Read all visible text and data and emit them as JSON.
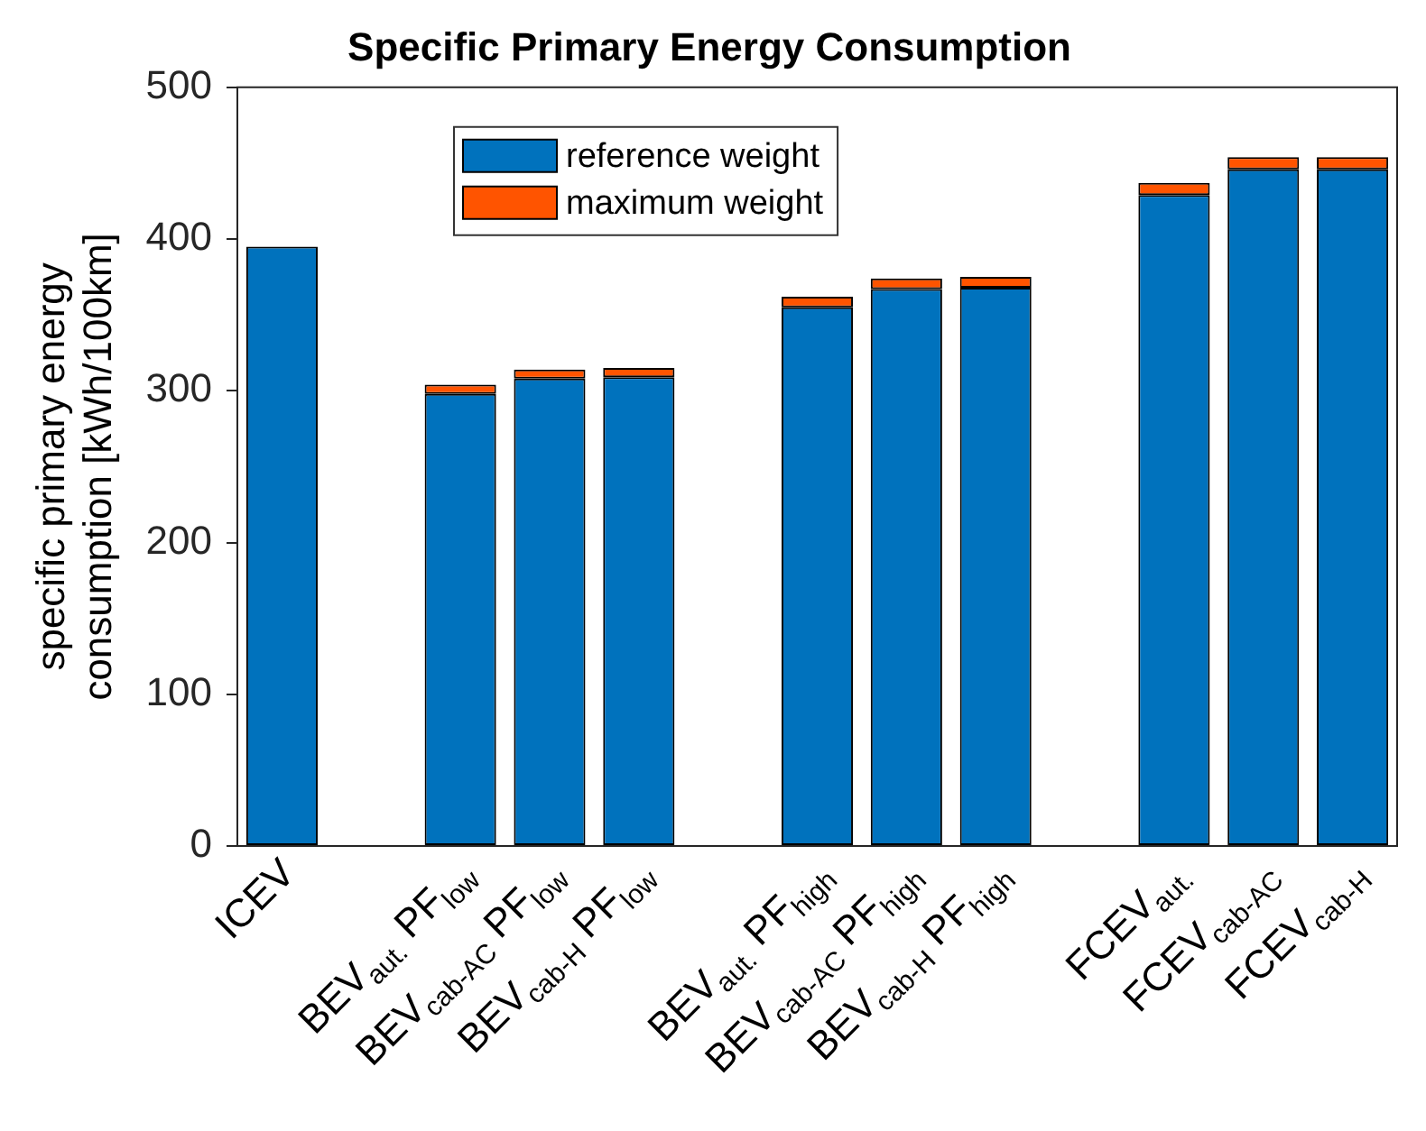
{
  "chart_data": {
    "type": "bar",
    "title": "Specific Primary Energy Consumption",
    "ylabel": "specific primary energy\nconsumption [kWh/100km]",
    "categories": [
      "ICEV",
      null,
      "BEV$_{aut.}$ PF$_{low}$",
      "BEV$_{cab-AC}$ PF$_{low}$",
      "BEV$_{cab-H}$ PF$_{low}$",
      null,
      "BEV$_{aut.}$ PF$_{high}$",
      "BEV$_{cab-AC}$ PF$_{high}$",
      "BEV$_{cab-H}$ PF$_{high}$",
      null,
      "FCEV$_{aut.}$",
      "FCEV$_{cab-AC}$",
      "FCEV$_{cab-H}$"
    ],
    "series": [
      {
        "name": "reference weight",
        "color": "#0072bd",
        "values": [
          395,
          0,
          298,
          308,
          309,
          0,
          355,
          367,
          368,
          0,
          429,
          446,
          446
        ]
      },
      {
        "name": "maximum weight",
        "color": "#ff5400",
        "values": [
          0,
          0,
          6,
          6,
          6,
          0,
          7,
          7,
          7,
          0,
          8,
          8,
          8
        ]
      }
    ],
    "stacked": true,
    "ylim": [
      0,
      500
    ],
    "yticks": [
      0,
      100,
      200,
      300,
      400,
      500
    ],
    "grid": false,
    "legend": "top left"
  }
}
